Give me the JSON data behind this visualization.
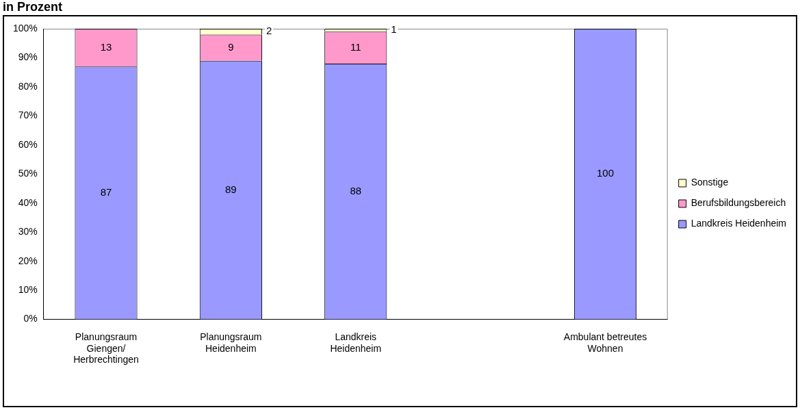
{
  "chart_data": {
    "type": "bar",
    "title": "in Prozent",
    "stacked": true,
    "data_labels": true,
    "legend": "right",
    "grid": false,
    "categories": [
      "Planungsraum\nGiengen/\nHerbrechtingen",
      "Planungsraum\nHeidenheim",
      "Landkreis\nHeidenheim",
      null,
      "Ambulant betreutes\nWohnen"
    ],
    "series": [
      {
        "name": "Landkreis Heidenheim",
        "color": "#9999ff",
        "values": [
          87,
          89,
          88,
          null,
          100
        ]
      },
      {
        "name": "Berufsbildungsbereich",
        "color": "#ff99cc",
        "values": [
          13,
          9,
          11,
          null,
          null
        ]
      },
      {
        "name": "Sonstige",
        "color": "#ffffcc",
        "values": [
          null,
          2,
          1,
          null,
          null
        ]
      }
    ],
    "ylim": [
      0,
      100
    ],
    "yticks": [
      {
        "value": 0,
        "label": "0%"
      },
      {
        "value": 10,
        "label": "10%"
      },
      {
        "value": 20,
        "label": "20%"
      },
      {
        "value": 30,
        "label": "30%"
      },
      {
        "value": 40,
        "label": "40%"
      },
      {
        "value": 50,
        "label": "50%"
      },
      {
        "value": 60,
        "label": "60%"
      },
      {
        "value": 70,
        "label": "70%"
      },
      {
        "value": 80,
        "label": "80%"
      },
      {
        "value": 90,
        "label": "90%"
      },
      {
        "value": 100,
        "label": "100%"
      }
    ]
  }
}
